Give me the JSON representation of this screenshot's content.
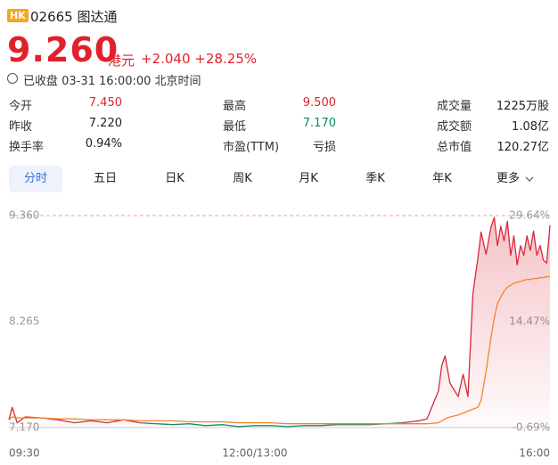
{
  "header": {
    "badge": "HK",
    "code": "02665",
    "name": "图达通"
  },
  "quote": {
    "price": "9.260",
    "unit": "港元",
    "change": "+2.040",
    "change_pct": "+28.25%"
  },
  "status": "已收盘 03-31 16:00:00 北京时间",
  "stats": [
    [
      {
        "label": "今开",
        "value": "7.450"
      },
      {
        "label": "最高",
        "value": "9.500"
      },
      {
        "label": "成交量",
        "value": "1225万股"
      }
    ],
    [
      {
        "label": "昨收",
        "value": "7.220"
      },
      {
        "label": "最低",
        "value": "7.170"
      },
      {
        "label": "成交额",
        "value": "1.08亿"
      }
    ],
    [
      {
        "label": "换手率",
        "value": "0.94%"
      },
      {
        "label": "市盈(TTM)",
        "value": "亏损"
      },
      {
        "label": "总市值",
        "value": "120.27亿"
      }
    ]
  ],
  "tabs": [
    "分时",
    "五日",
    "日K",
    "周K",
    "月K",
    "季K",
    "年K",
    "更多"
  ],
  "chart_data": {
    "type": "line",
    "x": [
      0,
      2,
      5,
      10,
      20,
      30,
      40,
      50,
      60,
      70,
      80,
      90,
      100,
      110,
      120,
      130,
      140,
      150,
      160,
      170,
      180,
      190,
      200,
      210,
      220,
      230,
      240,
      250,
      255,
      262,
      264,
      266,
      269,
      274,
      277,
      280,
      283,
      286,
      288,
      291,
      294,
      296,
      298,
      300,
      302,
      304,
      306,
      308,
      310,
      312,
      314,
      316,
      318,
      320,
      322,
      324,
      326,
      328,
      330
    ],
    "xlim": [
      0,
      330
    ],
    "xticks": [
      {
        "value": 0,
        "label": "09:30"
      },
      {
        "value": 150,
        "label": "12:00/13:00"
      },
      {
        "value": 330,
        "label": "16:00"
      }
    ],
    "ylim": [
      7.17,
      9.36
    ],
    "yticks": [
      {
        "value": 9.36,
        "label": "9.360"
      },
      {
        "value": 8.265,
        "label": "8.265"
      },
      {
        "value": 7.17,
        "label": "7.170"
      }
    ],
    "y2lim": [
      -0.69,
      29.64
    ],
    "y2ticks": [
      {
        "value": 29.64,
        "label": "29.64%"
      },
      {
        "value": 14.47,
        "label": "14.47%"
      },
      {
        "value": -0.69,
        "label": "-0.69%"
      }
    ],
    "down_color": "#1a8a6a",
    "series": [
      {
        "color": "#d8283a",
        "values": [
          7.25,
          7.38,
          7.22,
          7.28,
          7.27,
          7.25,
          7.22,
          7.24,
          7.22,
          7.25,
          7.22,
          7.21,
          7.2,
          7.21,
          7.19,
          7.2,
          7.18,
          7.19,
          7.19,
          7.18,
          7.19,
          7.19,
          7.2,
          7.2,
          7.2,
          7.21,
          7.22,
          7.24,
          7.26,
          7.55,
          7.81,
          7.91,
          7.63,
          7.49,
          7.72,
          7.49,
          8.55,
          8.92,
          9.19,
          8.96,
          9.24,
          9.34,
          9.05,
          9.25,
          9.1,
          9.3,
          8.95,
          9.15,
          8.85,
          9.05,
          8.95,
          9.15,
          9.0,
          9.2,
          8.95,
          9.05,
          8.9,
          8.87,
          9.26
        ]
      },
      {
        "color": "#f0862a",
        "values": [
          7.25,
          7.28,
          7.27,
          7.27,
          7.27,
          7.26,
          7.26,
          7.25,
          7.25,
          7.25,
          7.24,
          7.24,
          7.24,
          7.23,
          7.23,
          7.23,
          7.22,
          7.22,
          7.22,
          7.21,
          7.21,
          7.21,
          7.21,
          7.21,
          7.21,
          7.21,
          7.21,
          7.21,
          7.21,
          7.22,
          7.24,
          7.26,
          7.28,
          7.3,
          7.32,
          7.34,
          7.36,
          7.38,
          7.45,
          7.75,
          8.1,
          8.3,
          8.45,
          8.52,
          8.58,
          8.62,
          8.64,
          8.66,
          8.67,
          8.68,
          8.69,
          8.7,
          8.7,
          8.71,
          8.71,
          8.72,
          8.72,
          8.73,
          8.73
        ]
      }
    ]
  }
}
